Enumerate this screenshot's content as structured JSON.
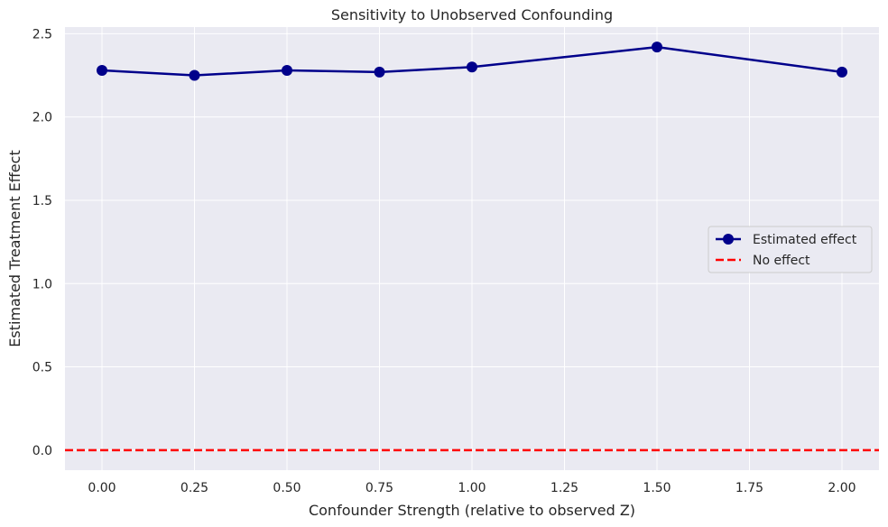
{
  "chart_data": {
    "type": "line",
    "title": "Sensitivity to Unobserved Confounding",
    "xlabel": "Confounder Strength (relative to observed Z)",
    "ylabel": "Estimated Treatment Effect",
    "xlim": [
      -0.1,
      2.1
    ],
    "ylim": [
      -0.12,
      2.54
    ],
    "xticks": [
      0.0,
      0.25,
      0.5,
      0.75,
      1.0,
      1.25,
      1.5,
      1.75,
      2.0
    ],
    "xtick_labels": [
      "0.00",
      "0.25",
      "0.50",
      "0.75",
      "1.00",
      "1.25",
      "1.50",
      "1.75",
      "2.00"
    ],
    "yticks": [
      0.0,
      0.5,
      1.0,
      1.5,
      2.0,
      2.5
    ],
    "ytick_labels": [
      "0.0",
      "0.5",
      "1.0",
      "1.5",
      "2.0",
      "2.5"
    ],
    "grid": true,
    "legend_position": "center-right",
    "series": [
      {
        "name": "Estimated effect",
        "style": "line-with-markers",
        "color": "#00008b",
        "x": [
          0.0,
          0.25,
          0.5,
          0.75,
          1.0,
          1.5,
          2.0
        ],
        "y": [
          2.28,
          2.25,
          2.28,
          2.27,
          2.3,
          2.42,
          2.27
        ]
      },
      {
        "name": "No effect",
        "style": "dashed-horizontal",
        "color": "#ff0000",
        "y": 0.0
      }
    ],
    "colors": {
      "background": "#eaeaf2",
      "grid": "#ffffff",
      "text": "#262626"
    }
  }
}
